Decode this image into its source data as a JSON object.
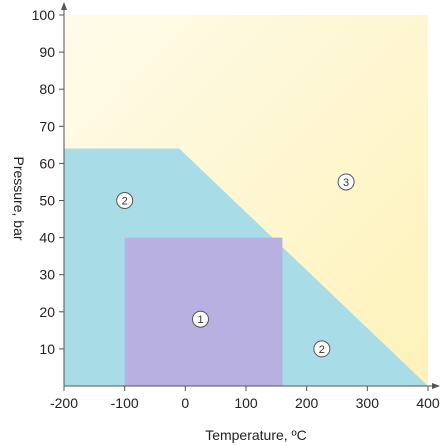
{
  "chart_data": {
    "type": "area",
    "xlabel": "Temperature, ºC",
    "ylabel": "Pressure, bar",
    "xlim": [
      -200,
      400
    ],
    "ylim": [
      0,
      100
    ],
    "x_ticks": [
      -200,
      -100,
      0,
      100,
      200,
      300,
      400
    ],
    "y_ticks": [
      10,
      20,
      30,
      40,
      50,
      60,
      70,
      80,
      90,
      100
    ],
    "grid": false,
    "colors": {
      "zone1": "#b8b0e0",
      "zone2": "#a8dde8",
      "zone3_light": "#fffbea",
      "zone3_dark": "#fdf2b8",
      "axis": "#555555"
    },
    "zones": [
      {
        "label": "2",
        "color_key": "zone2",
        "polygon": [
          [
            -200,
            0
          ],
          [
            -200,
            64
          ],
          [
            -10,
            64
          ],
          [
            400,
            0
          ]
        ],
        "label_at": [
          -100,
          50
        ]
      },
      {
        "label": "1",
        "color_key": "zone1",
        "polygon": [
          [
            -100,
            0
          ],
          [
            -100,
            40
          ],
          [
            160,
            40
          ],
          [
            160,
            0
          ]
        ],
        "label_at": [
          25,
          18
        ]
      },
      {
        "label": "2",
        "color_key": "zone2",
        "polygon": [],
        "label_at": [
          225,
          10
        ]
      },
      {
        "label": "3",
        "color_key": "zone3_dark",
        "polygon": [
          [
            -200,
            64
          ],
          [
            -200,
            100
          ],
          [
            400,
            100
          ],
          [
            400,
            0
          ],
          [
            -10,
            64
          ]
        ],
        "label_at": [
          265,
          55
        ]
      }
    ]
  }
}
